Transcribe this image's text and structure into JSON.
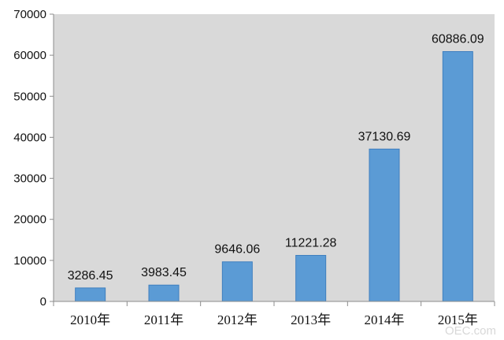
{
  "chart_data": {
    "type": "bar",
    "title": "",
    "xlabel": "",
    "ylabel": "",
    "categories": [
      "2010年",
      "2011年",
      "2012年",
      "2013年",
      "2014年",
      "2015年"
    ],
    "values": [
      3286.45,
      3983.45,
      9646.06,
      11221.28,
      37130.69,
      60886.09
    ],
    "data_labels": [
      "3286.45",
      "3983.45",
      "9646.06",
      "11221.28",
      "37130.69",
      "60886.09"
    ],
    "ylim": [
      0,
      70000
    ],
    "yticks": [
      "0",
      "10000",
      "20000",
      "30000",
      "40000",
      "50000",
      "60000",
      "70000"
    ],
    "grid": false,
    "legend": "none",
    "colors": {
      "bar_fill": "#5b9bd5",
      "bar_stroke": "#3f7fbf",
      "plot_background": "#d9d9d9",
      "axis": "#8c8c8c"
    }
  },
  "watermark": "OEC.com"
}
